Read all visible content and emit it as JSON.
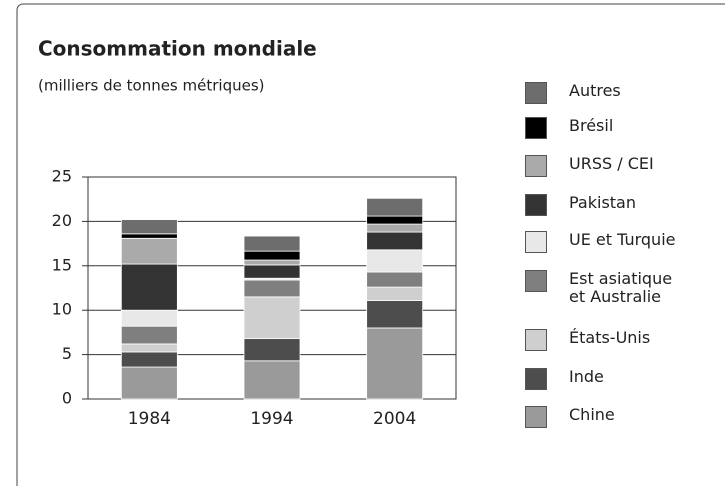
{
  "chart_data": {
    "type": "stacked_bar",
    "title": "Consommation mondiale",
    "subtitle": "(milliers de tonnes métriques)",
    "categories": [
      "1984",
      "1994",
      "2004"
    ],
    "series": [
      {
        "name": "Chine",
        "color": "#9a9a9a",
        "values": [
          3.6,
          4.3,
          8.0
        ]
      },
      {
        "name": "Inde",
        "color": "#4d4d4d",
        "values": [
          1.7,
          2.5,
          3.1
        ]
      },
      {
        "name": "États-Unis",
        "color": "#cfcfcf",
        "values": [
          0.9,
          4.7,
          1.5
        ]
      },
      {
        "name": "Est asiatique\net Australie",
        "color": "#7f7f7f",
        "values": [
          2.0,
          1.9,
          1.7
        ]
      },
      {
        "name": "UE et Turquie",
        "color": "#e8e8e8",
        "values": [
          1.8,
          0.2,
          2.5
        ]
      },
      {
        "name": "Pakistan",
        "color": "#333333",
        "values": [
          5.2,
          1.5,
          2.0
        ]
      },
      {
        "name": "URSS / CEI",
        "color": "#aaaaaa",
        "values": [
          2.9,
          0.55,
          0.9
        ]
      },
      {
        "name": "Brésil",
        "color": "#000000",
        "values": [
          0.5,
          1.0,
          0.9
        ]
      },
      {
        "name": "Autres",
        "color": "#6d6d6d",
        "values": [
          1.6,
          1.7,
          2.0
        ]
      }
    ],
    "ylim": [
      0,
      25
    ],
    "yticks": [
      0,
      5,
      10,
      15,
      20,
      25
    ],
    "grid": true
  }
}
